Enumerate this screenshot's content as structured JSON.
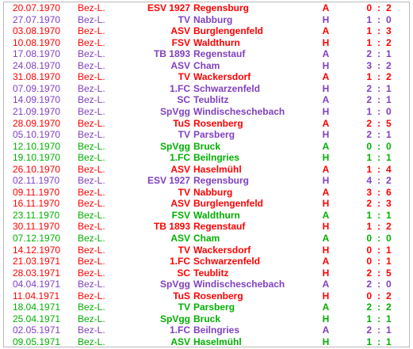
{
  "colors": {
    "loss": "#ff0000",
    "win": "#8040c0",
    "draw": "#00b000"
  },
  "matches": [
    {
      "date": "20.07.1970",
      "comp": "Bez-L.",
      "prefix": "ESV 1927",
      "name": "Regensburg",
      "venue": "A",
      "home": "0",
      "away": "2",
      "result": "L"
    },
    {
      "date": "27.07.1970",
      "comp": "Bez-L.",
      "prefix": "TV",
      "name": "Nabburg",
      "venue": "H",
      "home": "1",
      "away": "0",
      "result": "W"
    },
    {
      "date": "03.08.1970",
      "comp": "Bez-L.",
      "prefix": "ASV",
      "name": "Burglengenfeld",
      "venue": "A",
      "home": "1",
      "away": "3",
      "result": "L"
    },
    {
      "date": "10.08.1970",
      "comp": "Bez-L.",
      "prefix": "FSV",
      "name": "Waldthurn",
      "venue": "H",
      "home": "1",
      "away": "2",
      "result": "L"
    },
    {
      "date": "17.08.1970",
      "comp": "Bez-L.",
      "prefix": "TB 1893",
      "name": "Regenstauf",
      "venue": "A",
      "home": "2",
      "away": "1",
      "result": "W"
    },
    {
      "date": "24.08.1970",
      "comp": "Bez-L.",
      "prefix": "ASV",
      "name": "Cham",
      "venue": "H",
      "home": "3",
      "away": "2",
      "result": "W"
    },
    {
      "date": "31.08.1970",
      "comp": "Bez-L.",
      "prefix": "TV",
      "name": "Wackersdorf",
      "venue": "A",
      "home": "1",
      "away": "2",
      "result": "L"
    },
    {
      "date": "07.09.1970",
      "comp": "Bez-L.",
      "prefix": "1.FC",
      "name": "Schwarzenfeld",
      "venue": "H",
      "home": "2",
      "away": "1",
      "result": "W"
    },
    {
      "date": "14.09.1970",
      "comp": "Bez-L.",
      "prefix": "SC",
      "name": "Teublitz",
      "venue": "A",
      "home": "2",
      "away": "1",
      "result": "W"
    },
    {
      "date": "21.09.1970",
      "comp": "Bez-L.",
      "prefix": "SpVgg",
      "name": "Windischeschebach",
      "venue": "H",
      "home": "1",
      "away": "0",
      "result": "W"
    },
    {
      "date": "28.09.1970",
      "comp": "Bez-L.",
      "prefix": "TuS",
      "name": "Rosenberg",
      "venue": "A",
      "home": "2",
      "away": "5",
      "result": "L"
    },
    {
      "date": "05.10.1970",
      "comp": "Bez-L.",
      "prefix": "TV",
      "name": "Parsberg",
      "venue": "H",
      "home": "2",
      "away": "1",
      "result": "W"
    },
    {
      "date": "12.10.1970",
      "comp": "Bez-L.",
      "prefix": "SpVgg",
      "name": "Bruck",
      "venue": "A",
      "home": "0",
      "away": "0",
      "result": "D"
    },
    {
      "date": "19.10.1970",
      "comp": "Bez-L.",
      "prefix": "1.FC",
      "name": "Beilngries",
      "venue": "H",
      "home": "1",
      "away": "1",
      "result": "D"
    },
    {
      "date": "26.10.1970",
      "comp": "Bez-L.",
      "prefix": "ASV",
      "name": "Haselmühl",
      "venue": "A",
      "home": "1",
      "away": "4",
      "result": "L"
    },
    {
      "date": "02.11.1970",
      "comp": "Bez-L.",
      "prefix": "ESV 1927",
      "name": "Regensburg",
      "venue": "H",
      "home": "4",
      "away": "2",
      "result": "W"
    },
    {
      "date": "09.11.1970",
      "comp": "Bez-L.",
      "prefix": "TV",
      "name": "Nabburg",
      "venue": "A",
      "home": "3",
      "away": "6",
      "result": "L"
    },
    {
      "date": "16.11.1970",
      "comp": "Bez-L.",
      "prefix": "ASV",
      "name": "Burglengenfeld",
      "venue": "H",
      "home": "2",
      "away": "3",
      "result": "L"
    },
    {
      "date": "23.11.1970",
      "comp": "Bez-L.",
      "prefix": "FSV",
      "name": "Waldthurn",
      "venue": "A",
      "home": "1",
      "away": "1",
      "result": "D"
    },
    {
      "date": "30.11.1970",
      "comp": "Bez-L.",
      "prefix": "TB 1893",
      "name": "Regenstauf",
      "venue": "H",
      "home": "1",
      "away": "2",
      "result": "L"
    },
    {
      "date": "07.12.1970",
      "comp": "Bez-L.",
      "prefix": "ASV",
      "name": "Cham",
      "venue": "A",
      "home": "0",
      "away": "0",
      "result": "D"
    },
    {
      "date": "14.12.1970",
      "comp": "Bez-L.",
      "prefix": "TV",
      "name": "Wackersdorf",
      "venue": "H",
      "home": "0",
      "away": "1",
      "result": "L"
    },
    {
      "date": "21.03.1971",
      "comp": "Bez-L.",
      "prefix": "1.FC",
      "name": "Schwarzenfeld",
      "venue": "A",
      "home": "0",
      "away": "1",
      "result": "L"
    },
    {
      "date": "28.03.1971",
      "comp": "Bez-L.",
      "prefix": "SC",
      "name": "Teublitz",
      "venue": "H",
      "home": "2",
      "away": "5",
      "result": "L"
    },
    {
      "date": "04.04.1971",
      "comp": "Bez-L.",
      "prefix": "SpVgg",
      "name": "Windischeschebach",
      "venue": "A",
      "home": "2",
      "away": "0",
      "result": "W"
    },
    {
      "date": "11.04.1971",
      "comp": "Bez-L.",
      "prefix": "TuS",
      "name": "Rosenberg",
      "venue": "H",
      "home": "0",
      "away": "2",
      "result": "L"
    },
    {
      "date": "18.04.1971",
      "comp": "Bez-L.",
      "prefix": "TV",
      "name": "Parsberg",
      "venue": "A",
      "home": "2",
      "away": "2",
      "result": "D"
    },
    {
      "date": "25.04.1971",
      "comp": "Bez-L.",
      "prefix": "SpVgg",
      "name": "Bruck",
      "venue": "H",
      "home": "1",
      "away": "1",
      "result": "D"
    },
    {
      "date": "02.05.1971",
      "comp": "Bez-L.",
      "prefix": "1.FC",
      "name": "Beilngries",
      "venue": "A",
      "home": "2",
      "away": "1",
      "result": "W"
    },
    {
      "date": "09.05.1971",
      "comp": "Bez-L.",
      "prefix": "ASV",
      "name": "Haselmühl",
      "venue": "H",
      "home": "1",
      "away": "1",
      "result": "D"
    }
  ]
}
